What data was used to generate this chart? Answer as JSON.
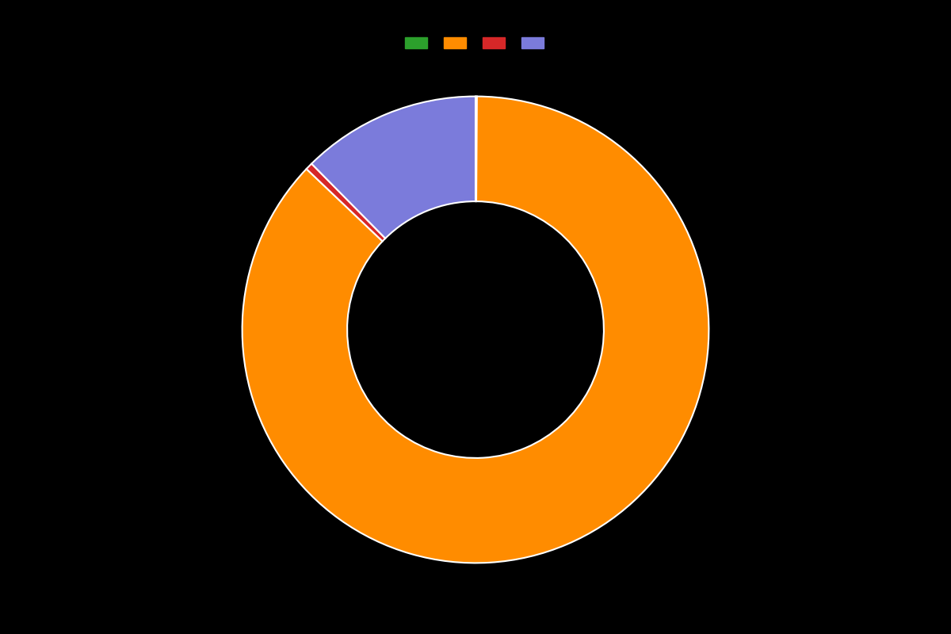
{
  "values": [
    0.1,
    87.0,
    0.5,
    12.4
  ],
  "colors": [
    "#2ca02c",
    "#ff8c00",
    "#d62728",
    "#7b7bdb"
  ],
  "legend_colors": [
    "#2ca02c",
    "#ff8c00",
    "#d62728",
    "#7b7bdb"
  ],
  "legend_labels": [
    "",
    "",
    "",
    ""
  ],
  "background_color": "#000000",
  "wedge_linewidth": 1.5,
  "wedge_linecolor": "#ffffff",
  "donut_width": 0.45,
  "startangle": 90
}
